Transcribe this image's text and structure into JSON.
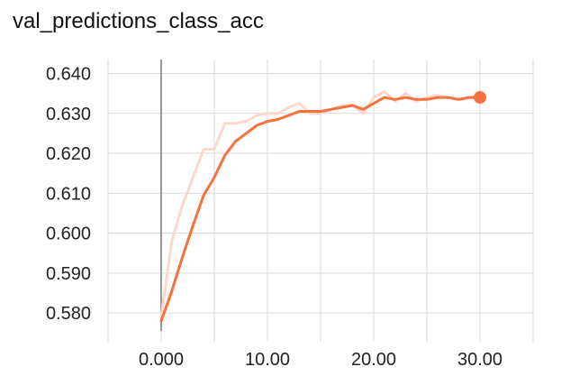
{
  "chart_data": {
    "type": "line",
    "title": "val_predictions_class_acc",
    "xlabel": "",
    "ylabel": "",
    "xlim": [
      -5,
      35
    ],
    "ylim": [
      0.5755,
      0.6435
    ],
    "x_ticks": [
      0,
      10,
      20,
      30
    ],
    "x_tick_labels": [
      "0.000",
      "10.00",
      "20.00",
      "30.00"
    ],
    "y_ticks": [
      0.58,
      0.59,
      0.6,
      0.61,
      0.62,
      0.63,
      0.64
    ],
    "y_tick_labels": [
      "0.580",
      "0.590",
      "0.600",
      "0.610",
      "0.620",
      "0.630",
      "0.640"
    ],
    "grid": true,
    "colors": {
      "smoothed": "#f5713e",
      "raw": "#fcd8cb",
      "grid": "#d9d9d9",
      "zero_axis": "#999999"
    },
    "series": [
      {
        "role": "raw",
        "x": [
          0,
          1,
          2,
          3,
          4,
          5,
          6,
          7,
          8,
          9,
          10,
          11,
          12,
          13,
          14,
          15,
          16,
          17,
          18,
          19,
          20,
          21,
          22,
          23,
          24,
          25,
          26,
          27,
          28,
          29,
          30
        ],
        "y": [
          0.579,
          0.598,
          0.607,
          0.614,
          0.621,
          0.621,
          0.6275,
          0.6275,
          0.628,
          0.6295,
          0.63,
          0.63,
          0.6315,
          0.6325,
          0.63,
          0.63,
          0.631,
          0.632,
          0.632,
          0.63,
          0.634,
          0.6355,
          0.633,
          0.635,
          0.633,
          0.634,
          0.6345,
          0.634,
          0.6335,
          0.634,
          0.634
        ]
      },
      {
        "role": "smoothed",
        "x": [
          0,
          1,
          2,
          3,
          4,
          5,
          6,
          7,
          8,
          9,
          10,
          11,
          12,
          13,
          14,
          15,
          16,
          17,
          18,
          19,
          20,
          21,
          22,
          23,
          24,
          25,
          26,
          27,
          28,
          29,
          30
        ],
        "y": [
          0.578,
          0.5855,
          0.594,
          0.602,
          0.6095,
          0.614,
          0.6195,
          0.623,
          0.625,
          0.627,
          0.628,
          0.6285,
          0.6295,
          0.6305,
          0.6305,
          0.6305,
          0.631,
          0.6315,
          0.632,
          0.631,
          0.6325,
          0.634,
          0.6335,
          0.634,
          0.6335,
          0.6335,
          0.634,
          0.634,
          0.6335,
          0.634,
          0.634
        ]
      }
    ],
    "highlight_point": {
      "x": 30,
      "y": 0.634
    }
  }
}
